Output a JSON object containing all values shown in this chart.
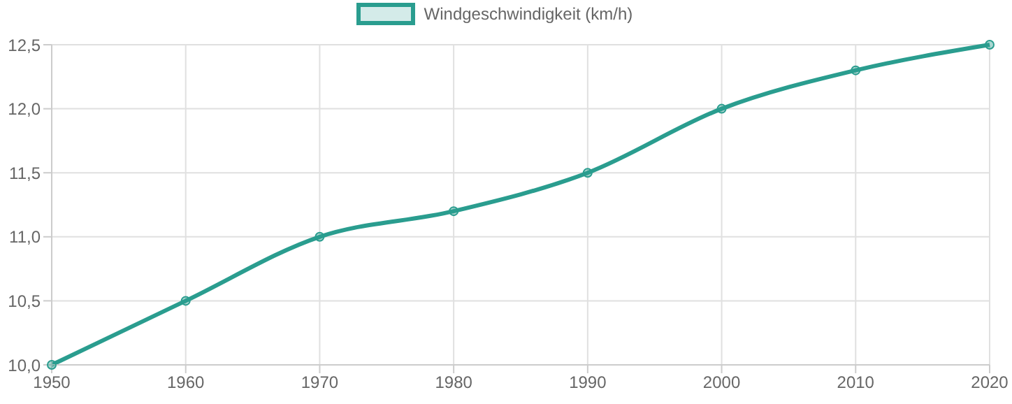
{
  "chart_data": {
    "type": "line",
    "x": [
      1950,
      1960,
      1970,
      1980,
      1990,
      2000,
      2010,
      2020
    ],
    "series": [
      {
        "name": "Windgeschwindigkeit (km/h)",
        "color": "#2a9d8f",
        "values": [
          10.0,
          10.5,
          11.0,
          11.2,
          11.5,
          12.0,
          12.3,
          12.5
        ]
      }
    ],
    "xlim": [
      1950,
      2020
    ],
    "xticks": [
      1950,
      1960,
      1970,
      1980,
      1990,
      2000,
      2010,
      2020
    ],
    "ylim": [
      10,
      12.5
    ],
    "yticks": [
      {
        "value": 10,
        "label": "10,0"
      },
      {
        "value": 10.5,
        "label": "10,5"
      },
      {
        "value": 11,
        "label": "11,0"
      },
      {
        "value": 11.5,
        "label": "11,5"
      },
      {
        "value": 12,
        "label": "12,0"
      },
      {
        "value": 12.5,
        "label": "12,5"
      }
    ],
    "grid": true,
    "legend": "top",
    "marker": "circle",
    "line_style": "solid"
  }
}
